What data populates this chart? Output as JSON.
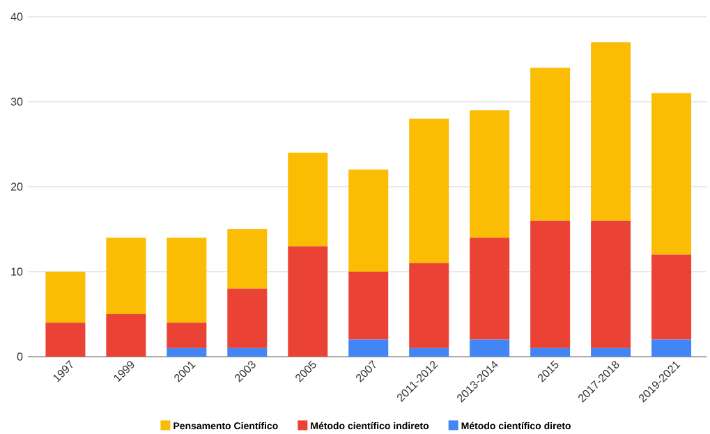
{
  "chart_data": {
    "type": "bar",
    "stacked": true,
    "categories": [
      "1997",
      "1999",
      "2001",
      "2003",
      "2005",
      "2007",
      "2011-2012",
      "2013-2014",
      "2015",
      "2017-2018",
      "2019-2021"
    ],
    "series": [
      {
        "name": "Método científico direto",
        "color": "#4285f4",
        "values": [
          0,
          0,
          1,
          1,
          0,
          2,
          1,
          2,
          1,
          1,
          2
        ]
      },
      {
        "name": "Método científico indireto",
        "color": "#ea4335",
        "values": [
          4,
          5,
          3,
          7,
          13,
          8,
          10,
          12,
          15,
          15,
          10
        ]
      },
      {
        "name": "Pensamento Científico",
        "color": "#fbbc04",
        "values": [
          6,
          9,
          10,
          7,
          11,
          12,
          17,
          15,
          18,
          21,
          19
        ]
      }
    ],
    "ylim": [
      0,
      40
    ],
    "yticks": [
      0,
      10,
      20,
      30,
      40
    ],
    "grid": "y",
    "legend": "bottom"
  }
}
